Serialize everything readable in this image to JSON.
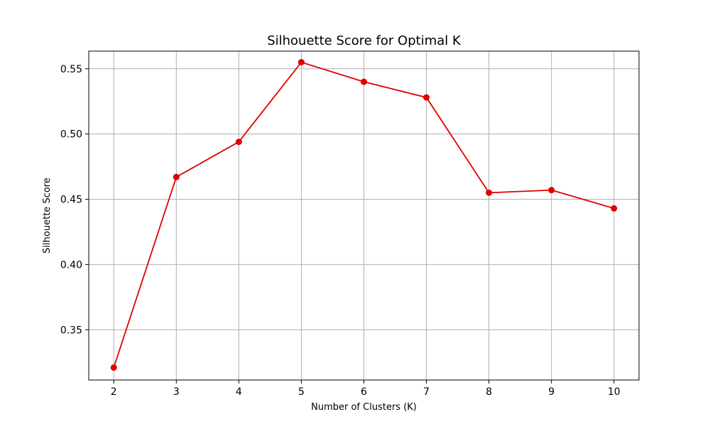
{
  "chart_data": {
    "type": "line",
    "title": "Silhouette Score for Optimal K",
    "xlabel": "Number of Clusters (K)",
    "ylabel": "Silhouette Score",
    "x": [
      2,
      3,
      4,
      5,
      6,
      7,
      8,
      9,
      10
    ],
    "x_tick_labels": [
      "2",
      "3",
      "4",
      "5",
      "6",
      "7",
      "8",
      "9",
      "10"
    ],
    "y_ticks": [
      0.35,
      0.4,
      0.45,
      0.5,
      0.55
    ],
    "y_tick_labels": [
      "0.35",
      "0.40",
      "0.45",
      "0.50",
      "0.55"
    ],
    "series": [
      {
        "values": [
          0.321,
          0.467,
          0.494,
          0.555,
          0.54,
          0.528,
          0.455,
          0.457,
          0.443
        ],
        "color": "#e00000",
        "marker": "circle"
      }
    ],
    "xlim": [
      1.6,
      10.4
    ],
    "ylim": [
      0.3115,
      0.5635
    ],
    "grid": true,
    "grid_color": "#b0b0b0",
    "legend": "none"
  }
}
